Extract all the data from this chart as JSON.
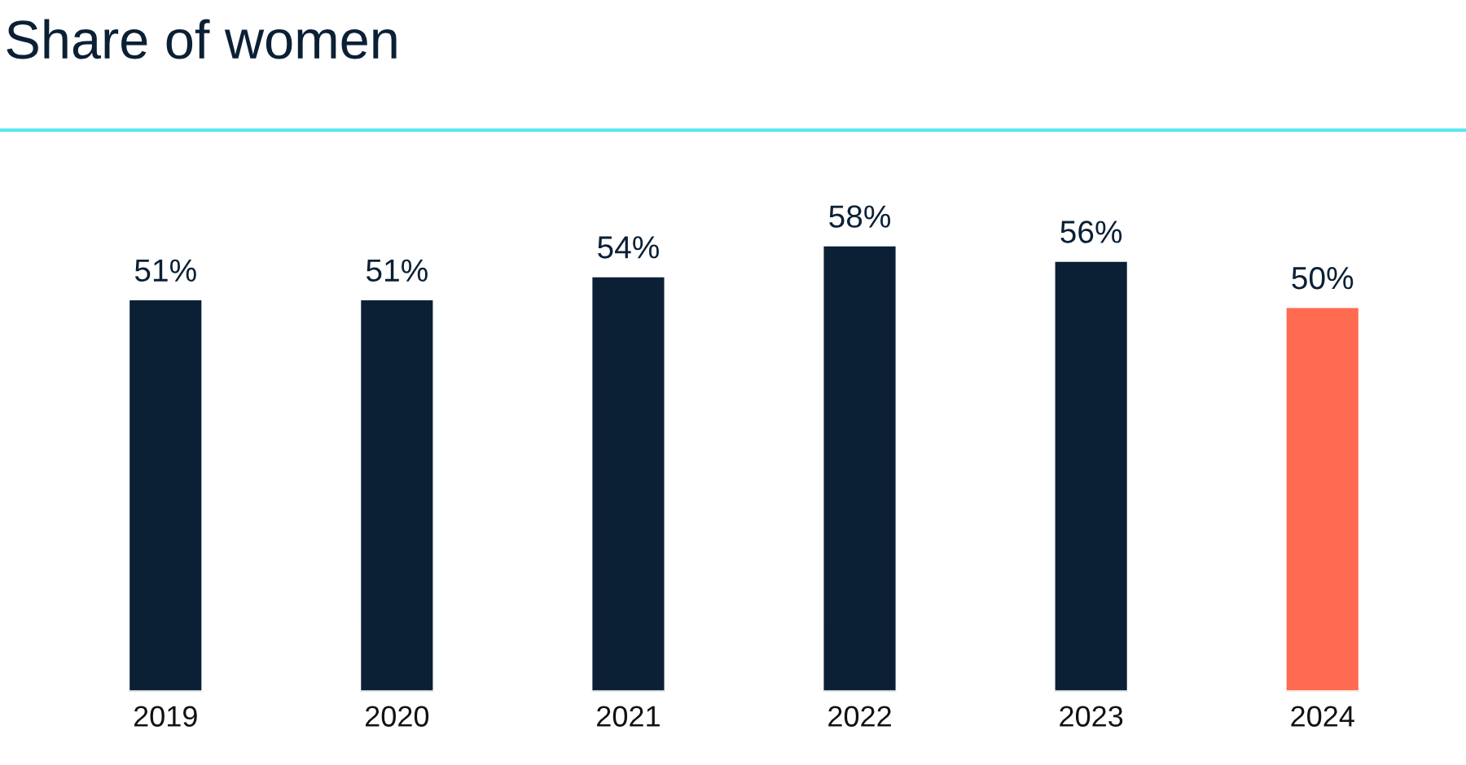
{
  "chart_data": {
    "type": "bar",
    "title": "Share of women",
    "categories": [
      "2019",
      "2020",
      "2021",
      "2022",
      "2023",
      "2024"
    ],
    "values": [
      51,
      51,
      54,
      58,
      56,
      50
    ],
    "colors": [
      "#0b2035",
      "#0b2035",
      "#0b2035",
      "#0b2035",
      "#0b2035",
      "#ff6b50"
    ],
    "value_labels": [
      "51%",
      "51%",
      "54%",
      "58%",
      "56%",
      "50%"
    ],
    "grid": false,
    "legend": false
  }
}
